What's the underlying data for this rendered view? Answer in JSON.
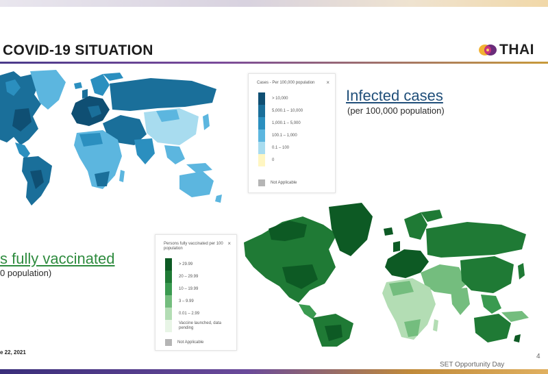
{
  "header": {
    "title": "COVID-19 SITUATION",
    "logo_text": "THAI"
  },
  "infected": {
    "title": "Infected cases",
    "subtitle": "(per 100,000 population)",
    "legend": {
      "title": "Cases - Per 100,000 population",
      "close": "×",
      "items": [
        {
          "label": "> 10,000",
          "color": "#0f4f73"
        },
        {
          "label": "5,000.1 – 10,000",
          "color": "#1a6f9a"
        },
        {
          "label": "1,000.1 – 5,000",
          "color": "#2b8fbf"
        },
        {
          "label": "100.1 – 1,000",
          "color": "#5cb6df"
        },
        {
          "label": "0.1 – 100",
          "color": "#a8dcef"
        },
        {
          "label": "0",
          "color": "#fff6c2"
        }
      ],
      "na_label": "Not Applicable"
    }
  },
  "vaccinated": {
    "title": "s fully vaccinated",
    "subtitle": "0 population)",
    "legend": {
      "title": "Persons fully vaccinated per 100 population",
      "close": "×",
      "items": [
        {
          "label": "> 29.99",
          "color": "#0d5a24"
        },
        {
          "label": "20 – 29.99",
          "color": "#1f7a35"
        },
        {
          "label": "10 – 19.99",
          "color": "#3a9a50"
        },
        {
          "label": "3 – 9.99",
          "color": "#74bd7e"
        },
        {
          "label": "0.01 – 2.99",
          "color": "#b3ddb4"
        },
        {
          "label": "Vaccine launched, data pending",
          "color": "#e8f5e6"
        }
      ],
      "na_label": "Not Applicable"
    }
  },
  "footer": {
    "date": "e 22, 2021",
    "event": "SET Opportunity Day",
    "page": "4"
  }
}
